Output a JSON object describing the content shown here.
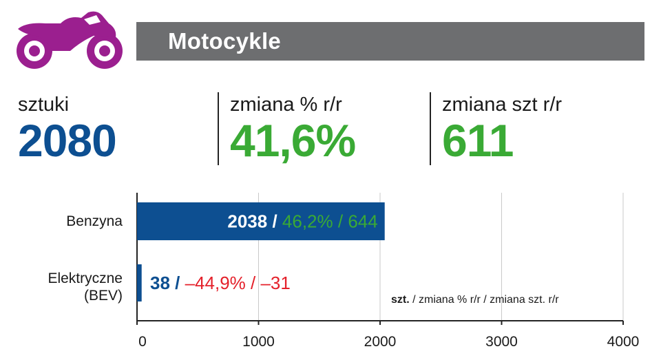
{
  "header": {
    "title": "Motocykle"
  },
  "icons": {
    "vehicle": "motorcycle-icon"
  },
  "stats": [
    {
      "label": "sztuki",
      "value": "2080",
      "color": "#0d4f91"
    },
    {
      "label": "zmiana % r/r",
      "value": "41,6%",
      "color": "#3aaa35"
    },
    {
      "label": "zmiana szt r/r",
      "value": "611",
      "color": "#3aaa35"
    }
  ],
  "colors": {
    "blue": "#0d4f91",
    "green": "#3aaa35",
    "red": "#e4202a",
    "header_bg": "#6d6e70",
    "icon": "#9b1f8f",
    "grid": "#c9c9c9"
  },
  "chart_data": {
    "type": "bar",
    "orientation": "horizontal",
    "categories": [
      "Benzyna",
      "Elektryczne (BEV)"
    ],
    "values": [
      2038,
      38
    ],
    "pct_change": [
      "46,2%",
      "–44,9%"
    ],
    "abs_change": [
      "644",
      "–31"
    ],
    "change_colors": [
      "#3aaa35",
      "#e4202a"
    ],
    "xlim": [
      0,
      4000
    ],
    "xticks": [
      "0",
      "1000",
      "2000",
      "3000",
      "4000"
    ],
    "xtick_values": [
      0,
      1000,
      2000,
      3000,
      4000
    ],
    "grid": true,
    "note_bold": "szt.",
    "note_rest": " / zmiana % r/r / zmiana szt. r/r"
  }
}
